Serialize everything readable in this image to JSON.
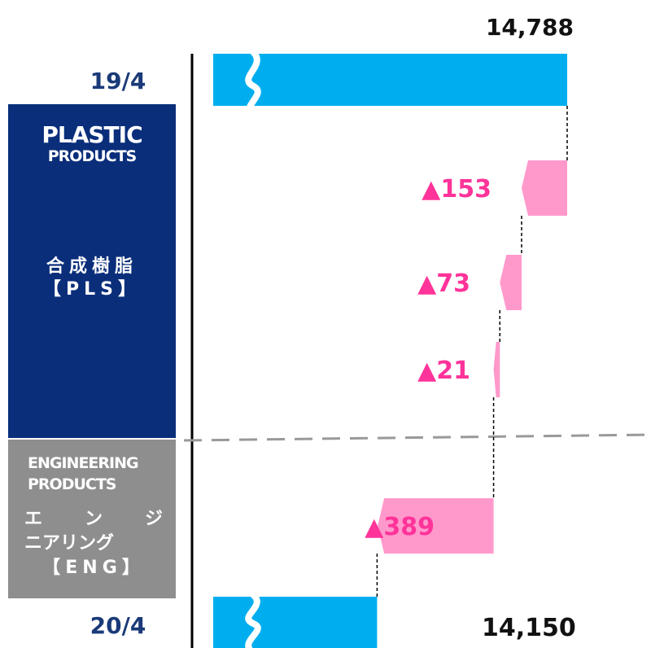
{
  "chart_data": {
    "type": "waterfall",
    "start": {
      "label": "19/4",
      "value": 14788
    },
    "end": {
      "label": "20/4",
      "value": 14150
    },
    "changes": [
      {
        "display": "▲153",
        "value": -153,
        "segment": "pls"
      },
      {
        "display": "▲73",
        "value": -73,
        "segment": "pls"
      },
      {
        "display": "▲21",
        "value": -21,
        "segment": "pls"
      },
      {
        "display": "▲389",
        "value": -389,
        "segment": "eng"
      }
    ],
    "start_label": "14,788",
    "end_label": "14,150",
    "axis_break": true,
    "colors": {
      "total": "#00aeef",
      "decrease": "#ff99cc",
      "decrease_text": "#ff3399",
      "divider": "#999999"
    }
  },
  "segments": {
    "pls": {
      "logo_line1": "PLASTIC",
      "logo_line2": "PRODUCTS",
      "name": "合成樹脂",
      "code": "【PLS】",
      "color": "#0a2e7a"
    },
    "eng": {
      "logo_line1": "ENGINEERING",
      "logo_line2": "PRODUCTS",
      "name_line1_chars": [
        "エ",
        "ン",
        "ジ"
      ],
      "name_line2": "ニアリング",
      "code": "【ENG】",
      "color": "#8e8e8e"
    }
  }
}
